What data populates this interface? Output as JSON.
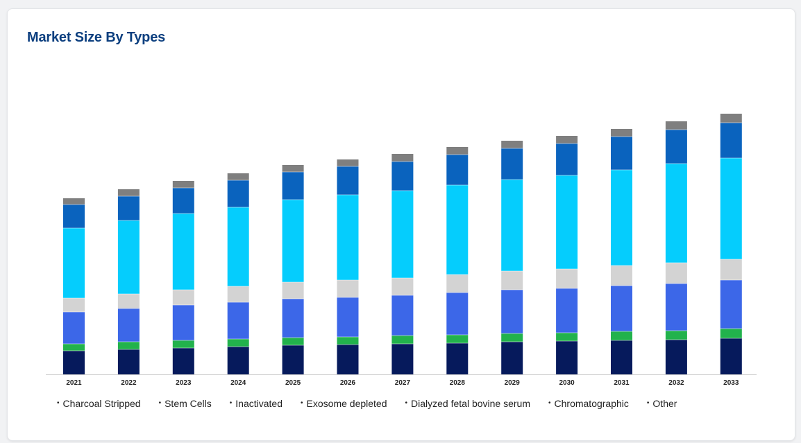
{
  "chart_data": {
    "type": "bar",
    "stacked": true,
    "title": "Market Size By Types",
    "xlabel": "",
    "ylabel": "",
    "categories": [
      "2021",
      "2022",
      "2023",
      "2024",
      "2025",
      "2026",
      "2027",
      "2028",
      "2029",
      "2030",
      "2031",
      "2032",
      "2033"
    ],
    "series": [
      {
        "name": "Charcoal Stripped",
        "color": "#061a5c",
        "values": [
          34,
          36,
          38,
          40,
          42,
          43,
          44,
          45,
          47,
          48,
          49,
          50,
          52
        ]
      },
      {
        "name": "Stem Cells",
        "color": "#22b24c",
        "values": [
          10,
          11,
          11,
          11,
          11,
          11,
          12,
          12,
          12,
          12,
          13,
          13,
          14
        ]
      },
      {
        "name": "Inactivated",
        "color": "#3c67e8",
        "values": [
          46,
          48,
          51,
          53,
          56,
          57,
          58,
          61,
          63,
          64,
          66,
          68,
          70
        ]
      },
      {
        "name": "Exosome depleted",
        "color": "#d3d3d3",
        "values": [
          20,
          21,
          22,
          23,
          24,
          25,
          25,
          26,
          27,
          28,
          29,
          30,
          30
        ]
      },
      {
        "name": "Dialyzed fetal bovine serum",
        "color": "#05cdfd",
        "values": [
          101,
          106,
          110,
          114,
          119,
          123,
          126,
          129,
          132,
          135,
          138,
          143,
          146
        ]
      },
      {
        "name": "Chromatographic",
        "color": "#0a63be",
        "values": [
          34,
          35,
          37,
          39,
          40,
          41,
          42,
          44,
          45,
          46,
          48,
          49,
          51
        ]
      },
      {
        "name": "Other",
        "color": "#7f7f7f",
        "values": [
          9,
          10,
          10,
          10,
          10,
          10,
          11,
          11,
          11,
          11,
          11,
          12,
          13
        ]
      }
    ],
    "ylim": [
      0,
      390
    ],
    "grid": false,
    "legend_position": "bottom",
    "axis_color": "#cfcfcf"
  }
}
